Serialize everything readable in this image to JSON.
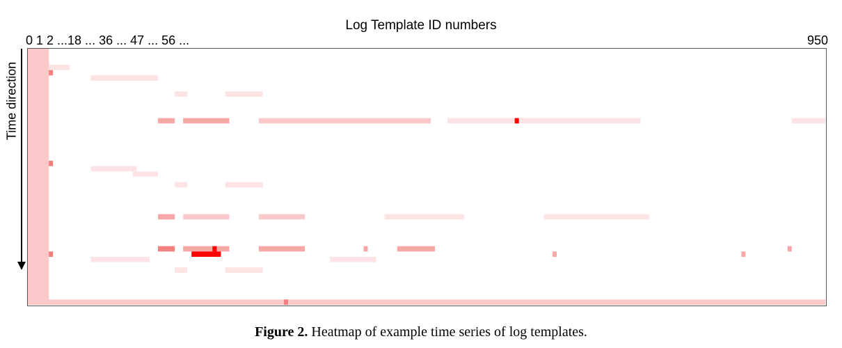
{
  "chart_data": {
    "type": "heatmap",
    "title": "",
    "xlabel": "Log Template ID numbers",
    "ylabel": "Time direction",
    "x_tick_labels_left": "0 1 2 ...18 ... 36 ... 47 ... 56 ...",
    "x_tick_label_right": "950",
    "legend": "none",
    "grid": false,
    "colors": {
      "high": "#ff0000",
      "medium": "#f47f7f",
      "low": "#fbc9c9",
      "faint": "#fde3e3",
      "empty": "#ffffff"
    },
    "cell_values_note_range": [
      0,
      1
    ],
    "rows": 48,
    "columns": 190,
    "template_index_range": [
      0,
      950
    ],
    "bands": [
      {
        "col_start": 0,
        "col_end": 4,
        "row_start": 0,
        "row_end": 47,
        "value": 0.25
      },
      {
        "col_start": 5,
        "col_end": 9,
        "row_start": 3,
        "row_end": 3,
        "value": 0.15
      },
      {
        "col_start": 15,
        "col_end": 30,
        "row_start": 5,
        "row_end": 5,
        "value": 0.15
      },
      {
        "col_start": 35,
        "col_end": 37,
        "row_start": 8,
        "row_end": 8,
        "value": 0.15
      },
      {
        "col_start": 47,
        "col_end": 55,
        "row_start": 8,
        "row_end": 8,
        "value": 0.15
      },
      {
        "col_start": 31,
        "col_end": 34,
        "row_start": 13,
        "row_end": 13,
        "value": 0.45
      },
      {
        "col_start": 37,
        "col_end": 47,
        "row_start": 13,
        "row_end": 13,
        "value": 0.35
      },
      {
        "col_start": 55,
        "col_end": 95,
        "row_start": 13,
        "row_end": 13,
        "value": 0.22
      },
      {
        "col_start": 100,
        "col_end": 115,
        "row_start": 13,
        "row_end": 13,
        "value": 0.15
      },
      {
        "col_start": 117,
        "col_end": 145,
        "row_start": 13,
        "row_end": 13,
        "value": 0.12
      },
      {
        "col_start": 182,
        "col_end": 189,
        "row_start": 13,
        "row_end": 13,
        "value": 0.15
      },
      {
        "col_start": 15,
        "col_end": 25,
        "row_start": 22,
        "row_end": 22,
        "value": 0.15
      },
      {
        "col_start": 25,
        "col_end": 30,
        "row_start": 23,
        "row_end": 23,
        "value": 0.15
      },
      {
        "col_start": 35,
        "col_end": 37,
        "row_start": 25,
        "row_end": 25,
        "value": 0.15
      },
      {
        "col_start": 47,
        "col_end": 55,
        "row_start": 25,
        "row_end": 25,
        "value": 0.15
      },
      {
        "col_start": 31,
        "col_end": 34,
        "row_start": 31,
        "row_end": 31,
        "value": 0.4
      },
      {
        "col_start": 37,
        "col_end": 47,
        "row_start": 31,
        "row_end": 31,
        "value": 0.28
      },
      {
        "col_start": 55,
        "col_end": 65,
        "row_start": 31,
        "row_end": 31,
        "value": 0.28
      },
      {
        "col_start": 85,
        "col_end": 103,
        "row_start": 31,
        "row_end": 31,
        "value": 0.15
      },
      {
        "col_start": 123,
        "col_end": 147,
        "row_start": 31,
        "row_end": 31,
        "value": 0.12
      },
      {
        "col_start": 31,
        "col_end": 34,
        "row_start": 37,
        "row_end": 37,
        "value": 0.55
      },
      {
        "col_start": 37,
        "col_end": 47,
        "row_start": 37,
        "row_end": 37,
        "value": 0.32
      },
      {
        "col_start": 55,
        "col_end": 65,
        "row_start": 37,
        "row_end": 37,
        "value": 0.3
      },
      {
        "col_start": 88,
        "col_end": 96,
        "row_start": 37,
        "row_end": 37,
        "value": 0.4
      },
      {
        "col_start": 39,
        "col_end": 45,
        "row_start": 38,
        "row_end": 38,
        "value": 1.0
      },
      {
        "col_start": 15,
        "col_end": 28,
        "row_start": 39,
        "row_end": 39,
        "value": 0.15
      },
      {
        "col_start": 72,
        "col_end": 82,
        "row_start": 39,
        "row_end": 39,
        "value": 0.15
      },
      {
        "col_start": 35,
        "col_end": 37,
        "row_start": 41,
        "row_end": 41,
        "value": 0.15
      },
      {
        "col_start": 47,
        "col_end": 55,
        "row_start": 41,
        "row_end": 41,
        "value": 0.15
      },
      {
        "col_start": 0,
        "col_end": 189,
        "row_start": 47,
        "row_end": 47,
        "value": 0.22
      }
    ],
    "cells": [
      {
        "col": 116,
        "row": 13,
        "value": 1.0
      },
      {
        "col": 44,
        "row": 37,
        "value": 0.9
      },
      {
        "col": 61,
        "row": 47,
        "value": 0.7
      },
      {
        "col": 5,
        "row": 4,
        "value": 0.6
      },
      {
        "col": 5,
        "row": 21,
        "value": 0.6
      },
      {
        "col": 5,
        "row": 38,
        "value": 0.6
      },
      {
        "col": 80,
        "row": 37,
        "value": 0.45
      },
      {
        "col": 125,
        "row": 38,
        "value": 0.4
      },
      {
        "col": 170,
        "row": 38,
        "value": 0.4
      },
      {
        "col": 181,
        "row": 37,
        "value": 0.4
      }
    ]
  },
  "caption": {
    "label": "Figure 2.",
    "text": " Heatmap of example time series of log templates."
  }
}
